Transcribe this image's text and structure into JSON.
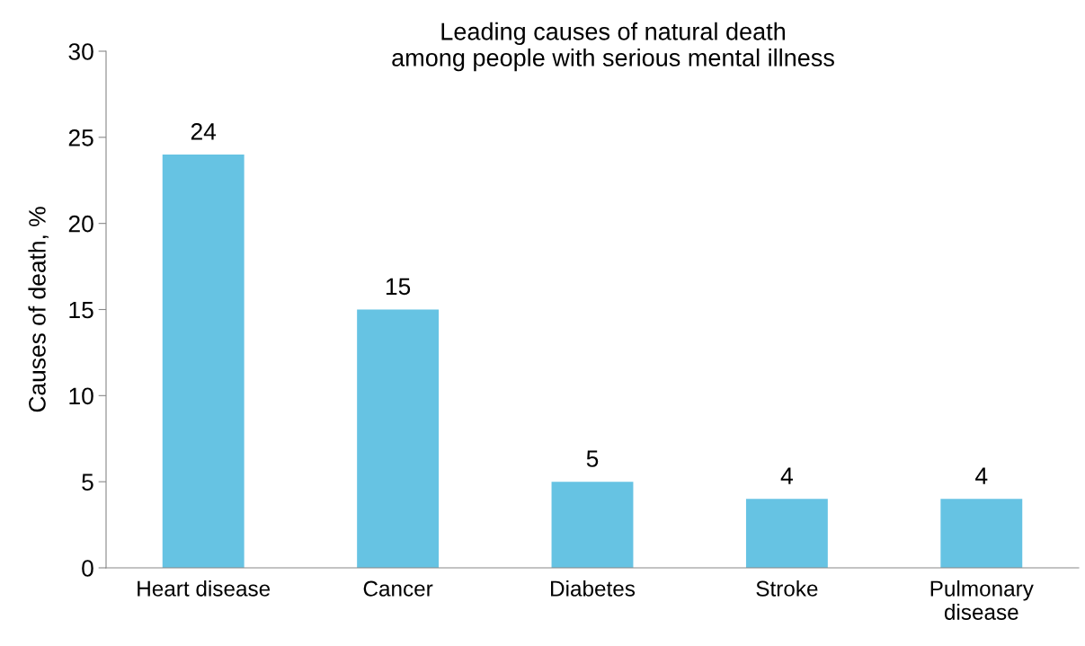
{
  "chart_data": {
    "type": "bar",
    "title": "Leading causes of natural death\namong people with serious mental illness",
    "ylabel": "Causes of death, %",
    "categories": [
      "Heart disease",
      "Cancer",
      "Diabetes",
      "Stroke",
      "Pulmonary\ndisease"
    ],
    "values": [
      24,
      15,
      5,
      4,
      4
    ],
    "color": "#66c3e3",
    "ylim": [
      0,
      30
    ],
    "yticks": [
      0,
      5,
      10,
      15,
      20,
      25,
      30
    ],
    "grid": false,
    "data_labels": true
  }
}
